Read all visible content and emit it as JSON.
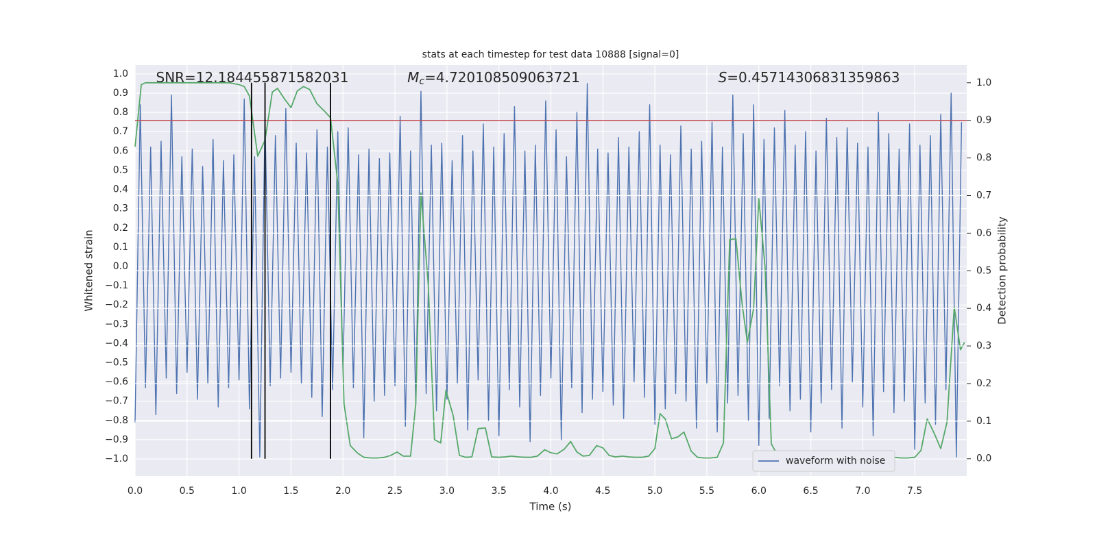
{
  "chart_data": {
    "type": "line",
    "title": "stats at each timestep for test data 10888 [signal=0]",
    "xlabel": "Time (s)",
    "ylabel": "Whitened strain",
    "y2label": "Detection probability",
    "xlim": [
      0,
      8.0
    ],
    "ylim": [
      -1.089,
      1.046
    ],
    "y2lim": [
      -0.046,
      1.047
    ],
    "xticks": [
      {
        "value": 0,
        "label": "0.0"
      },
      {
        "value": 0.5,
        "label": "0.5"
      },
      {
        "value": 1,
        "label": "1.0"
      },
      {
        "value": 1.5,
        "label": "1.5"
      },
      {
        "value": 2,
        "label": "2.0"
      },
      {
        "value": 2.5,
        "label": "2.5"
      },
      {
        "value": 3,
        "label": "3.0"
      },
      {
        "value": 3.5,
        "label": "3.5"
      },
      {
        "value": 4,
        "label": "4.0"
      },
      {
        "value": 4.5,
        "label": "4.5"
      },
      {
        "value": 5,
        "label": "5.0"
      },
      {
        "value": 5.5,
        "label": "5.5"
      },
      {
        "value": 6,
        "label": "6.0"
      },
      {
        "value": 6.5,
        "label": "6.5"
      },
      {
        "value": 7,
        "label": "7.0"
      },
      {
        "value": 7.5,
        "label": "7.5"
      }
    ],
    "yticks": [
      {
        "value": -1.0,
        "label": "−1.0"
      },
      {
        "value": -0.9,
        "label": "−0.9"
      },
      {
        "value": -0.8,
        "label": "−0.8"
      },
      {
        "value": -0.7,
        "label": "−0.7"
      },
      {
        "value": -0.6,
        "label": "−0.6"
      },
      {
        "value": -0.5,
        "label": "−0.5"
      },
      {
        "value": -0.4,
        "label": "−0.4"
      },
      {
        "value": -0.3,
        "label": "−0.3"
      },
      {
        "value": -0.2,
        "label": "−0.2"
      },
      {
        "value": -0.1,
        "label": "−0.1"
      },
      {
        "value": 0,
        "label": "0.0"
      },
      {
        "value": 0.1,
        "label": "0.1"
      },
      {
        "value": 0.2,
        "label": "0.2"
      },
      {
        "value": 0.3,
        "label": "0.3"
      },
      {
        "value": 0.4,
        "label": "0.4"
      },
      {
        "value": 0.5,
        "label": "0.5"
      },
      {
        "value": 0.6,
        "label": "0.6"
      },
      {
        "value": 0.7,
        "label": "0.7"
      },
      {
        "value": 0.8,
        "label": "0.8"
      },
      {
        "value": 0.9,
        "label": "0.9"
      },
      {
        "value": 1.0,
        "label": "1.0"
      }
    ],
    "y2ticks": [
      {
        "value": 0,
        "label": "0.0"
      },
      {
        "value": 0.1,
        "label": "0.1"
      },
      {
        "value": 0.2,
        "label": "0.2"
      },
      {
        "value": 0.3,
        "label": "0.3"
      },
      {
        "value": 0.4,
        "label": "0.4"
      },
      {
        "value": 0.5,
        "label": "0.5"
      },
      {
        "value": 0.6,
        "label": "0.6"
      },
      {
        "value": 0.7,
        "label": "0.7"
      },
      {
        "value": 0.8,
        "label": "0.8"
      },
      {
        "value": 0.9,
        "label": "0.9"
      },
      {
        "value": 1.0,
        "label": "1.0"
      }
    ],
    "grid": true,
    "legend": "lower right",
    "threshold": 0.9,
    "threshold_color": "#c44e52",
    "vlines": [
      1.12,
      1.25,
      1.88
    ],
    "vline_color": "#000000",
    "annotations": [
      {
        "text": "SNR=12.184455871582031"
      },
      {
        "symbol": "M",
        "subscript": "c",
        "text": "=4.720108509063721"
      },
      {
        "symbol": "S",
        "text": "=0.45714306831359863"
      }
    ],
    "series": [
      {
        "name": "waveform with noise",
        "color": "#4c72b0",
        "x": [
          0,
          0.05,
          0.1,
          0.15,
          0.2,
          0.25,
          0.3,
          0.35,
          0.4,
          0.45,
          0.5,
          0.55,
          0.6,
          0.65,
          0.7,
          0.75,
          0.8,
          0.85,
          0.9,
          0.95,
          1.0,
          1.05,
          1.1,
          1.15,
          1.2,
          1.25,
          1.3,
          1.35,
          1.4,
          1.45,
          1.5,
          1.55,
          1.6,
          1.65,
          1.7,
          1.75,
          1.8,
          1.85,
          1.9,
          1.95,
          2.0,
          2.05,
          2.1,
          2.15,
          2.2,
          2.25,
          2.3,
          2.35,
          2.4,
          2.45,
          2.5,
          2.55,
          2.6,
          2.65,
          2.7,
          2.75,
          2.8,
          2.85,
          2.9,
          2.95,
          3.0,
          3.05,
          3.1,
          3.15,
          3.2,
          3.25,
          3.3,
          3.35,
          3.4,
          3.45,
          3.5,
          3.55,
          3.6,
          3.65,
          3.7,
          3.75,
          3.8,
          3.85,
          3.9,
          3.95,
          4.0,
          4.05,
          4.1,
          4.15,
          4.2,
          4.25,
          4.3,
          4.35,
          4.4,
          4.45,
          4.5,
          4.55,
          4.6,
          4.65,
          4.7,
          4.75,
          4.8,
          4.85,
          4.9,
          4.95,
          5.0,
          5.05,
          5.1,
          5.15,
          5.2,
          5.25,
          5.3,
          5.35,
          5.4,
          5.45,
          5.5,
          5.55,
          5.6,
          5.65,
          5.7,
          5.75,
          5.8,
          5.85,
          5.9,
          5.95,
          6.0,
          6.05,
          6.1,
          6.15,
          6.2,
          6.25,
          6.3,
          6.35,
          6.4,
          6.45,
          6.5,
          6.55,
          6.6,
          6.65,
          6.7,
          6.75,
          6.8,
          6.85,
          6.9,
          6.95,
          7.0,
          7.05,
          7.1,
          7.15,
          7.2,
          7.25,
          7.3,
          7.35,
          7.4,
          7.45,
          7.5,
          7.55,
          7.6,
          7.65,
          7.7,
          7.75,
          7.8,
          7.85,
          7.9,
          7.95
        ],
        "values": [
          -0.81,
          0.84,
          -0.63,
          0.62,
          -0.77,
          0.65,
          -0.58,
          0.89,
          -0.66,
          0.57,
          -0.55,
          0.61,
          -0.69,
          0.52,
          -0.61,
          0.66,
          -0.73,
          0.55,
          -0.63,
          0.58,
          -0.59,
          0.87,
          -0.74,
          0.57,
          -0.99,
          0.77,
          -0.62,
          0.68,
          -0.58,
          0.82,
          -0.55,
          0.64,
          -0.61,
          0.59,
          -0.68,
          0.71,
          -0.78,
          0.62,
          -0.64,
          0.7,
          -0.54,
          0.72,
          -0.63,
          0.58,
          -0.89,
          0.61,
          -0.7,
          0.56,
          -0.67,
          0.59,
          -0.62,
          0.78,
          -0.83,
          0.6,
          -0.72,
          0.91,
          -0.66,
          0.63,
          -0.75,
          0.64,
          -0.69,
          0.55,
          -0.61,
          0.68,
          -0.85,
          0.6,
          -0.59,
          0.74,
          -0.8,
          0.62,
          -0.88,
          0.69,
          -0.64,
          0.83,
          -0.73,
          0.6,
          -0.91,
          0.63,
          -0.67,
          0.86,
          -0.58,
          0.71,
          -0.9,
          0.57,
          -0.63,
          0.8,
          -0.76,
          0.95,
          -0.69,
          0.61,
          -0.65,
          0.59,
          -0.72,
          0.67,
          -0.79,
          0.62,
          -0.6,
          0.7,
          -0.68,
          0.84,
          -0.82,
          0.63,
          -0.74,
          0.58,
          -0.66,
          0.73,
          -0.7,
          0.61,
          -0.84,
          0.65,
          -0.61,
          0.75,
          -0.86,
          0.62,
          -0.71,
          0.89,
          -0.67,
          0.69,
          -0.8,
          0.84,
          -0.93,
          0.66,
          -0.79,
          0.72,
          -0.62,
          0.81,
          -0.75,
          0.63,
          -0.69,
          0.7,
          -0.86,
          0.6,
          -0.71,
          0.77,
          -0.64,
          0.67,
          -0.84,
          0.72,
          -0.6,
          0.64,
          -0.73,
          0.62,
          -0.88,
          0.8,
          -0.65,
          0.69,
          -0.76,
          0.61,
          -0.7,
          0.74,
          -0.95,
          0.63,
          -0.71,
          0.68,
          -0.82,
          0.79,
          -0.64,
          0.9,
          -0.99,
          0.75
        ]
      },
      {
        "color": "#55a868",
        "axis": "y2",
        "x": [
          0,
          0.06,
          0.1,
          0.2,
          0.3,
          0.4,
          0.5,
          0.6,
          0.7,
          0.8,
          0.9,
          1.0,
          1.05,
          1.1,
          1.18,
          1.25,
          1.32,
          1.37,
          1.44,
          1.5,
          1.56,
          1.62,
          1.68,
          1.75,
          1.82,
          1.88,
          1.95,
          2.01,
          2.07,
          2.14,
          2.2,
          2.27,
          2.33,
          2.4,
          2.46,
          2.52,
          2.58,
          2.65,
          2.7,
          2.75,
          2.82,
          2.88,
          2.94,
          2.99,
          3.06,
          3.12,
          3.18,
          3.24,
          3.3,
          3.37,
          3.43,
          3.5,
          3.56,
          3.62,
          3.69,
          3.75,
          3.81,
          3.87,
          3.94,
          4.0,
          4.06,
          4.13,
          4.19,
          4.25,
          4.31,
          4.37,
          4.44,
          4.5,
          4.56,
          4.62,
          4.69,
          4.75,
          4.81,
          4.88,
          4.94,
          5.0,
          5.05,
          5.1,
          5.16,
          5.22,
          5.28,
          5.35,
          5.41,
          5.47,
          5.53,
          5.6,
          5.66,
          5.72,
          5.78,
          5.84,
          5.89,
          5.95,
          6.0,
          6.06,
          6.12,
          6.19,
          6.5,
          7.0,
          7.25,
          7.3,
          7.37,
          7.43,
          7.5,
          7.56,
          7.62,
          7.69,
          7.75,
          7.81,
          7.88,
          7.94,
          7.98
        ],
        "values": [
          0.83,
          0.995,
          1.0,
          1.0,
          1.0,
          1.0,
          1.0,
          1.0,
          1.0,
          1.0,
          1.0,
          0.995,
          0.99,
          0.965,
          0.805,
          0.847,
          0.975,
          0.985,
          0.956,
          0.934,
          0.978,
          0.99,
          0.982,
          0.944,
          0.925,
          0.907,
          0.732,
          0.146,
          0.035,
          0.015,
          0.004,
          0.002,
          0.002,
          0.004,
          0.009,
          0.018,
          0.007,
          0.007,
          0.146,
          0.707,
          0.464,
          0.051,
          0.042,
          0.182,
          0.115,
          0.009,
          0.004,
          0.005,
          0.08,
          0.082,
          0.005,
          0.004,
          0.005,
          0.007,
          0.005,
          0.004,
          0.004,
          0.007,
          0.024,
          0.016,
          0.013,
          0.026,
          0.046,
          0.018,
          0.007,
          0.009,
          0.035,
          0.029,
          0.009,
          0.005,
          0.007,
          0.005,
          0.004,
          0.004,
          0.007,
          0.027,
          0.12,
          0.106,
          0.053,
          0.058,
          0.071,
          0.02,
          0.004,
          0.002,
          0.002,
          0.004,
          0.042,
          0.583,
          0.585,
          0.41,
          0.31,
          0.4,
          0.692,
          0.51,
          0.04,
          0.004,
          0.002,
          0.002,
          0.004,
          0.004,
          0.002,
          0.002,
          0.004,
          0.022,
          0.106,
          0.066,
          0.027,
          0.097,
          0.404,
          0.29,
          0.31
        ]
      }
    ]
  }
}
